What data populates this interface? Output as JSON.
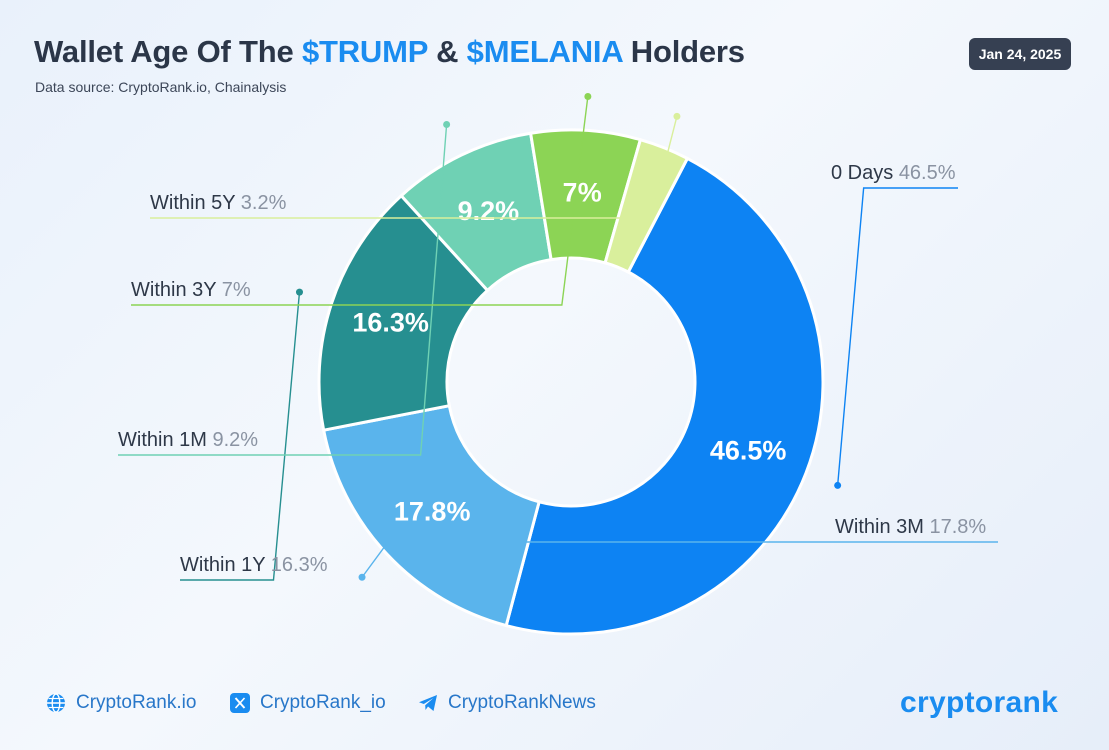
{
  "header": {
    "title_prefix": "Wallet Age Of The ",
    "title_token1": "$TRUMP",
    "title_amp": " & ",
    "title_token2": "$MELANIA",
    "title_suffix": " Holders",
    "source": "Data source: CryptoRank.io, Chainalysis",
    "date": "Jan 24, 2025"
  },
  "chart_data": {
    "type": "pie",
    "variant": "donut",
    "title": "Wallet Age Of The $TRUMP & $MELANIA Holders",
    "slices": [
      {
        "label": "0 Days",
        "value": 46.5,
        "display": "46.5%",
        "color": "#0d83f3"
      },
      {
        "label": "Within 3M",
        "value": 17.8,
        "display": "17.8%",
        "color": "#5ab4ec"
      },
      {
        "label": "Within 1Y",
        "value": 16.3,
        "display": "16.3%",
        "color": "#268f90"
      },
      {
        "label": "Within 1M",
        "value": 9.2,
        "display": "9.2%",
        "color": "#6fd1b4"
      },
      {
        "label": "Within 3Y",
        "value": 7,
        "display": "7%",
        "color": "#8cd455"
      },
      {
        "label": "Within 5Y",
        "value": 3.2,
        "display": "3.2%",
        "color": "#d9ef9c"
      }
    ]
  },
  "footer": {
    "website": "CryptoRank.io",
    "twitter": "CryptoRank_io",
    "telegram": "CryptoRankNews",
    "logo_text": "cryptorank"
  },
  "colors": {
    "accent": "#1a8cf0",
    "title_text": "#2b3648",
    "badge_bg": "#364052"
  }
}
